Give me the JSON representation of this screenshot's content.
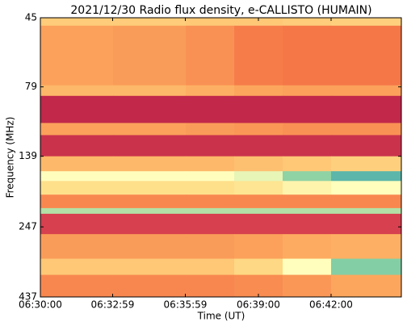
{
  "chart_data": {
    "type": "heatmap",
    "title": "2021/12/30  Radio flux density, e-CALLISTO (HUMAIN)",
    "xlabel": "Time (UT)",
    "ylabel": "Frequency (MHz)",
    "xlim": [
      "06:30:00",
      "06:44:54"
    ],
    "xticks": [
      "06:30:00",
      "06:32:59",
      "06:35:59",
      "06:39:00",
      "06:42:00"
    ],
    "ylim": [
      45,
      437
    ],
    "ylog": true,
    "y_inverted": true,
    "yticks": [
      45,
      79,
      139,
      247,
      437
    ],
    "x_edges": [
      "06:30:00",
      "06:33:00",
      "06:36:00",
      "06:38:00",
      "06:40:00",
      "06:42:00",
      "06:44:54"
    ],
    "y_edges": [
      45,
      48,
      78,
      85,
      106,
      117,
      139,
      157,
      170,
      190,
      212,
      222,
      262,
      320,
      365,
      437
    ],
    "zlim": [
      0,
      100
    ],
    "colormap": [
      "#9e0142",
      "#d53e4f",
      "#f46d43",
      "#fdae61",
      "#fee08b",
      "#ffffbf",
      "#abdda4",
      "#66c2a5",
      "#3288bd"
    ],
    "z": [
      [
        45,
        45,
        44,
        44,
        45,
        46
      ],
      [
        35,
        34,
        32,
        28,
        27,
        27
      ],
      [
        40,
        40,
        38,
        36,
        35,
        35
      ],
      [
        8,
        8,
        8,
        8,
        8,
        8
      ],
      [
        35,
        35,
        34,
        33,
        32,
        32
      ],
      [
        10,
        10,
        10,
        10,
        10,
        10
      ],
      [
        40,
        40,
        40,
        42,
        44,
        46
      ],
      [
        62,
        62,
        62,
        66,
        80,
        90
      ],
      [
        50,
        50,
        50,
        52,
        58,
        62
      ],
      [
        30,
        30,
        30,
        30,
        30,
        30
      ],
      [
        74,
        74,
        74,
        74,
        74,
        74
      ],
      [
        13,
        13,
        13,
        13,
        13,
        13
      ],
      [
        34,
        34,
        34,
        35,
        37,
        38
      ],
      [
        44,
        44,
        44,
        48,
        62,
        82
      ],
      [
        30,
        30,
        30,
        31,
        33,
        36
      ]
    ]
  }
}
